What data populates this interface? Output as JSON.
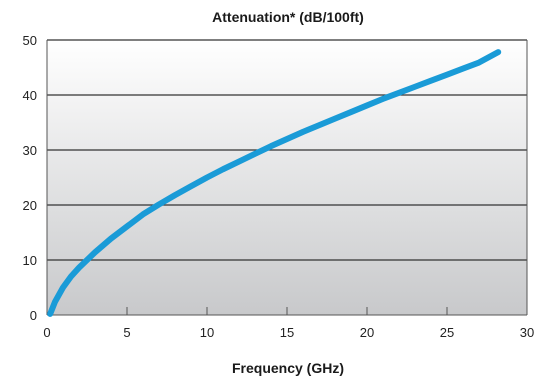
{
  "chart_data": {
    "type": "line",
    "title": "Attenuation* (dB/100ft)",
    "xlabel": "Frequency (GHz)",
    "ylabel": "",
    "xlim": [
      0,
      30
    ],
    "ylim": [
      0,
      50
    ],
    "x_ticks": [
      0,
      5,
      10,
      15,
      20,
      25,
      30
    ],
    "y_ticks": [
      0,
      10,
      20,
      30,
      40,
      50
    ],
    "grid": "horizontal",
    "series": [
      {
        "color": "#1a9bd7",
        "x": [
          0.2,
          0.5,
          1,
          1.5,
          2,
          3,
          4,
          5,
          6,
          7,
          8,
          9,
          10,
          11,
          12,
          13,
          14,
          15,
          16,
          17,
          18,
          19,
          20,
          21,
          22,
          23,
          24,
          25,
          26,
          27,
          28.2
        ],
        "y": [
          0.2,
          2.4,
          5.0,
          7.0,
          8.6,
          11.4,
          13.9,
          16.1,
          18.3,
          20.1,
          21.8,
          23.4,
          25.0,
          26.5,
          27.9,
          29.3,
          30.7,
          32.0,
          33.3,
          34.5,
          35.7,
          36.9,
          38.1,
          39.3,
          40.4,
          41.5,
          42.6,
          43.7,
          44.8,
          45.9,
          47.8
        ]
      }
    ]
  },
  "colors": {
    "plot_bg_top": "#ffffff",
    "plot_bg_bottom": "#c8c9cb",
    "grid": "#333333",
    "frame": "#555555"
  }
}
